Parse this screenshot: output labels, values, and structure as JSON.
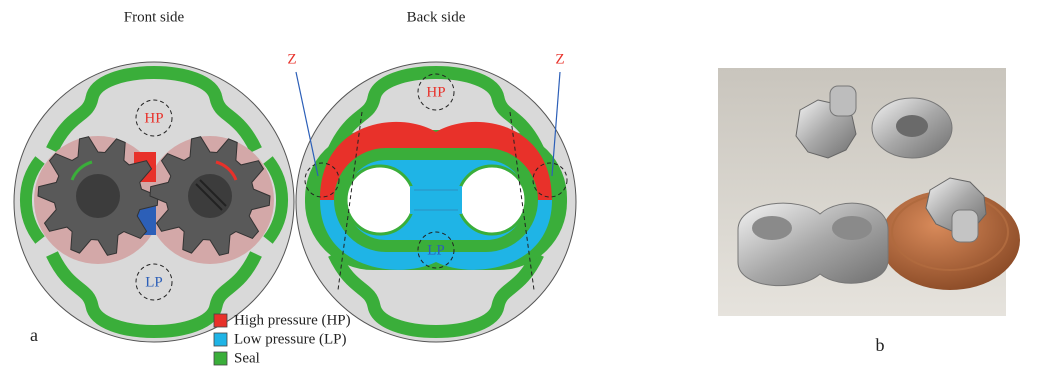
{
  "panel_a": {
    "front": {
      "title": "Front side",
      "hp": "HP",
      "lp": "LP"
    },
    "back": {
      "title": "Back side",
      "hp": "HP",
      "lp": "LP",
      "z_labels": [
        "Z",
        "Z"
      ]
    },
    "legend": [
      {
        "label": "High pressure (HP)",
        "color": "#e8312a"
      },
      {
        "label": "Low pressure (LP)",
        "color": "#1fb4e6"
      },
      {
        "label": "Seal",
        "color": "#3aae3a"
      }
    ],
    "label": "a"
  },
  "panel_b": {
    "label": "b"
  }
}
